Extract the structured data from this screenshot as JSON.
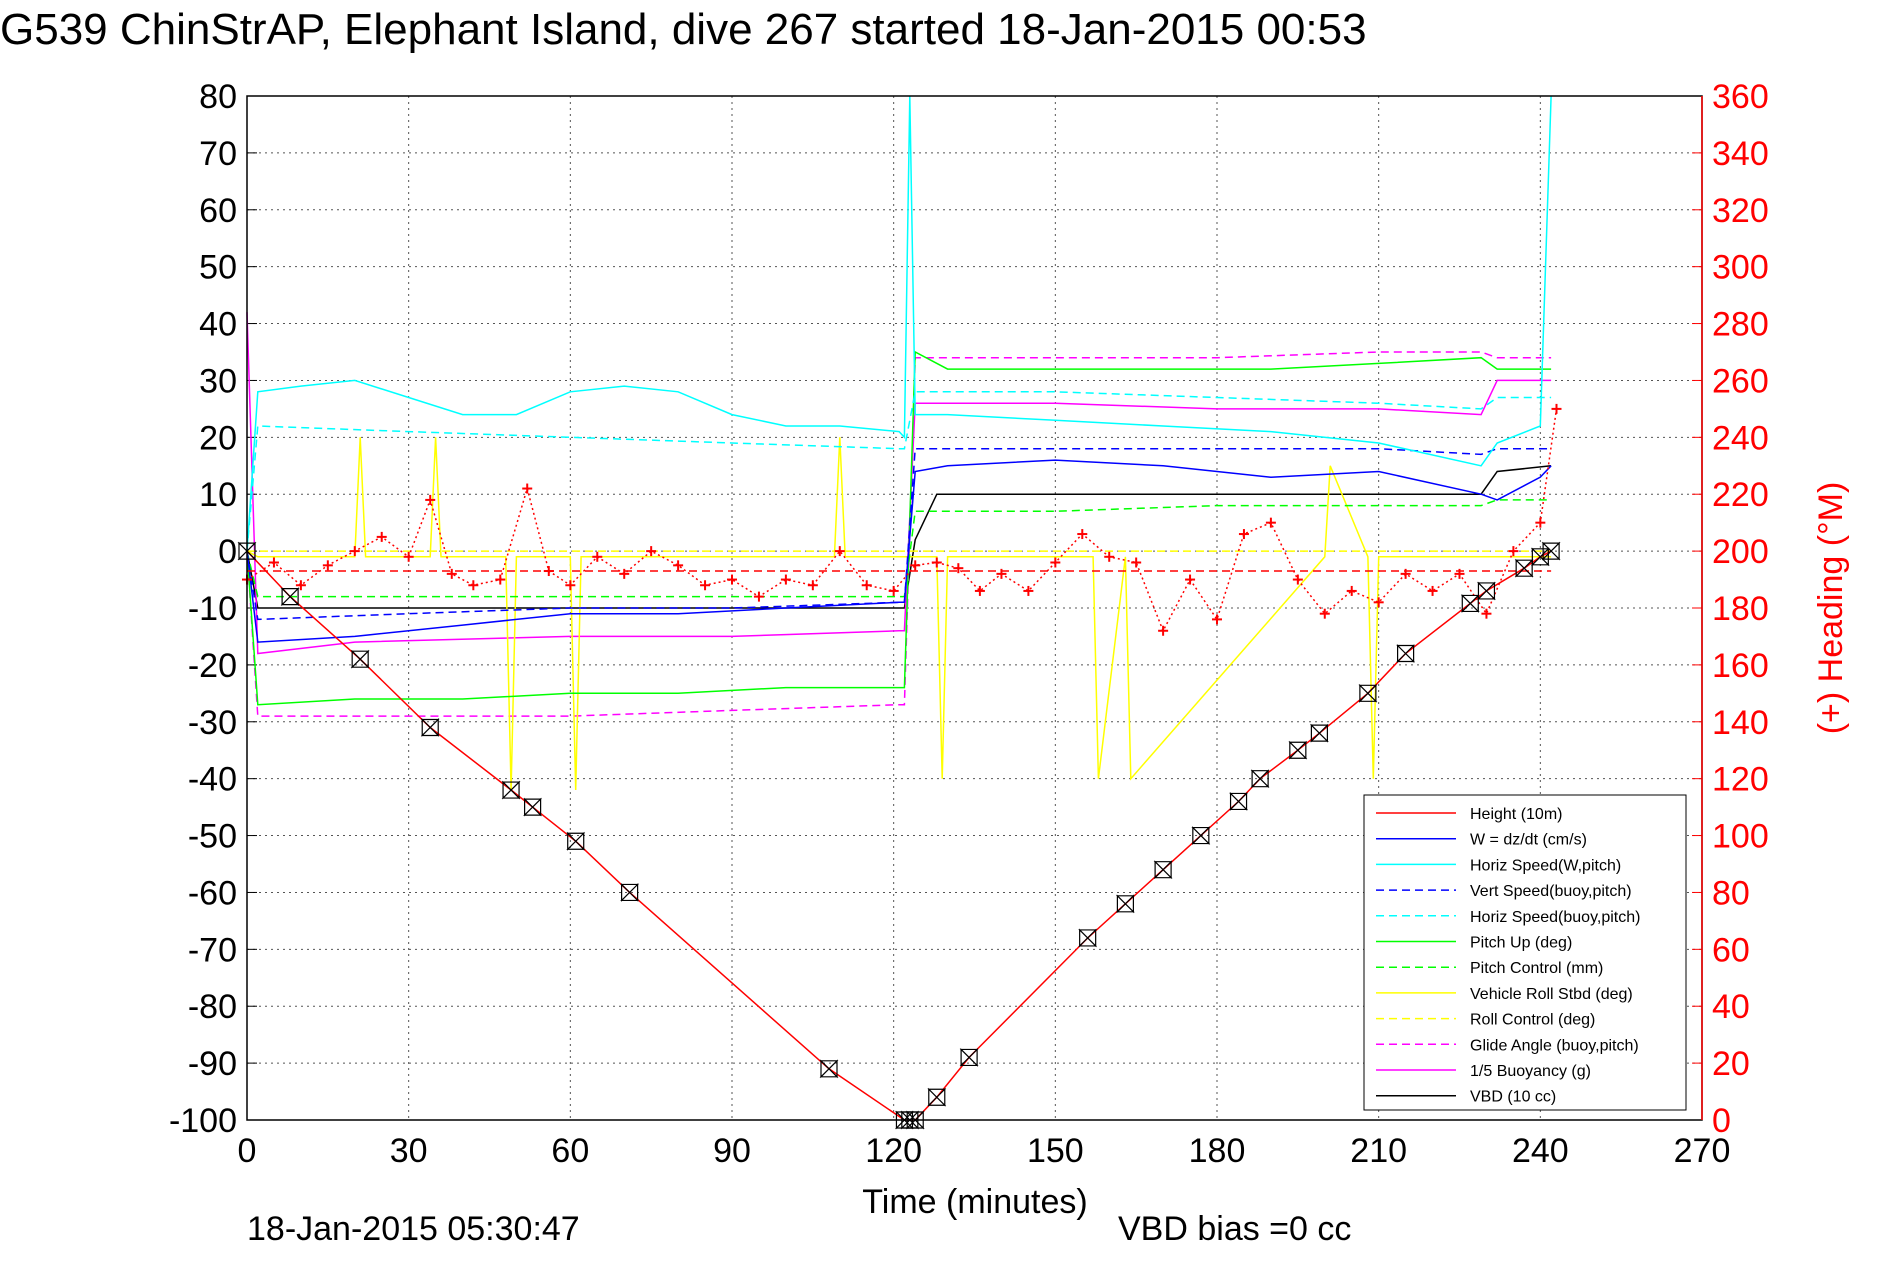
{
  "chart_data": {
    "type": "line",
    "title": "G539 ChinStrAP, Elephant Island, dive 267 started 18-Jan-2015 00:53",
    "xlabel": "Time (minutes)",
    "ylabel": "",
    "ylabel_right": "(+) Heading (°M)",
    "footer_left": "18-Jan-2015 05:30:47",
    "footer_right": "VBD bias =0 cc",
    "xlim": [
      0,
      270
    ],
    "ylim": [
      -100,
      80
    ],
    "ylim_right": [
      0,
      360
    ],
    "x_ticks": [
      "0",
      "30",
      "60",
      "90",
      "120",
      "150",
      "180",
      "210",
      "240",
      "270"
    ],
    "y_ticks": [
      "80",
      "70",
      "60",
      "50",
      "40",
      "30",
      "20",
      "10",
      "0",
      "-10",
      "-20",
      "-30",
      "-40",
      "-50",
      "-60",
      "-70",
      "-80",
      "-90",
      "-100"
    ],
    "y_ticks_right": [
      "360",
      "340",
      "320",
      "300",
      "280",
      "260",
      "240",
      "220",
      "200",
      "180",
      "160",
      "140",
      "120",
      "100",
      "80",
      "60",
      "40",
      "20",
      "0"
    ],
    "grid": true,
    "legend_position": "bottom-right",
    "colors": {
      "red": "#ff0000",
      "blue": "#0000ff",
      "cyan": "#00ffff",
      "green": "#00ff00",
      "yellow": "#ffff00",
      "magenta": "#ff00ff",
      "black": "#000000"
    },
    "series": [
      {
        "name": "Height (10m)",
        "color": "#ff0000",
        "style": "solid",
        "x": [
          0,
          8,
          21,
          34,
          49,
          53,
          61,
          71,
          108,
          122,
          124,
          128,
          134,
          156,
          163,
          170,
          177,
          184,
          188,
          195,
          199,
          208,
          215,
          230,
          237,
          240,
          242
        ],
        "y": [
          0,
          -8,
          -19,
          -31,
          -42,
          -45,
          -51,
          -60,
          -91,
          -100,
          -100,
          -96,
          -89,
          -68,
          -62,
          -56,
          -50,
          -44,
          -40,
          -35,
          -32,
          -25,
          -18,
          -7,
          -3,
          -1,
          0
        ]
      },
      {
        "name": "W = dz/dt (cm/s)",
        "color": "#0000ff",
        "style": "solid",
        "x": [
          0,
          2,
          20,
          40,
          60,
          80,
          100,
          121,
          122,
          124,
          130,
          150,
          170,
          190,
          210,
          229,
          232,
          240,
          242
        ],
        "y": [
          0,
          -16,
          -15,
          -13,
          -11,
          -11,
          -10,
          -9,
          -9,
          14,
          15,
          16,
          15,
          13,
          14,
          10,
          9,
          13,
          15
        ]
      },
      {
        "name": "Horiz Speed(W,pitch)",
        "color": "#00ffff",
        "style": "solid",
        "x": [
          0,
          2,
          10,
          20,
          30,
          40,
          50,
          60,
          70,
          80,
          90,
          100,
          110,
          121,
          122,
          123,
          124,
          130,
          150,
          170,
          190,
          210,
          229,
          232,
          240,
          242
        ],
        "y": [
          0,
          28,
          29,
          30,
          27,
          24,
          24,
          28,
          29,
          28,
          24,
          22,
          22,
          21,
          20,
          80,
          24,
          24,
          23,
          22,
          21,
          19,
          15,
          19,
          22,
          80
        ]
      },
      {
        "name": "Vert Speed(buoy,pitch)",
        "color": "#0000ff",
        "style": "dashed",
        "x": [
          0,
          2,
          30,
          60,
          90,
          121,
          122,
          124,
          150,
          180,
          210,
          229,
          232,
          242
        ],
        "y": [
          0,
          -12,
          -11,
          -10,
          -10,
          -9,
          -9,
          18,
          18,
          18,
          18,
          17,
          18,
          18
        ]
      },
      {
        "name": "Horiz Speed(buoy,pitch)",
        "color": "#00ffff",
        "style": "dashed",
        "x": [
          0,
          2,
          30,
          60,
          90,
          121,
          122,
          124,
          150,
          180,
          210,
          229,
          232,
          242
        ],
        "y": [
          0,
          22,
          21,
          20,
          19,
          18,
          18,
          28,
          28,
          27,
          26,
          25,
          27,
          27
        ]
      },
      {
        "name": "Pitch Up (deg)",
        "color": "#00ff00",
        "style": "solid",
        "x": [
          0,
          2,
          20,
          40,
          60,
          80,
          100,
          121,
          122,
          124,
          130,
          150,
          170,
          190,
          210,
          229,
          232,
          242
        ],
        "y": [
          0,
          -27,
          -26,
          -26,
          -25,
          -25,
          -24,
          -24,
          -24,
          35,
          32,
          32,
          32,
          32,
          33,
          34,
          32,
          32
        ]
      },
      {
        "name": "Pitch Control (mm)",
        "color": "#00ff00",
        "style": "dashed",
        "x": [
          0,
          2,
          60,
          121,
          122,
          124,
          150,
          180,
          210,
          229,
          232,
          242
        ],
        "y": [
          0,
          -8,
          -8,
          -8,
          -8,
          7,
          7,
          8,
          8,
          8,
          9,
          9
        ]
      },
      {
        "name": "Vehicle Roll Stbd (deg)",
        "color": "#ffff00",
        "style": "solid",
        "x": [
          0,
          2,
          20,
          21,
          22,
          34,
          35,
          36,
          48,
          49,
          50,
          60,
          61,
          62,
          109,
          110,
          111,
          128,
          129,
          130,
          157,
          158,
          163,
          164,
          200,
          201,
          208,
          209,
          210,
          242
        ],
        "y": [
          0,
          -1,
          -1,
          20,
          -1,
          -1,
          20,
          -1,
          -1,
          -42,
          -1,
          -1,
          -42,
          -1,
          -1,
          20,
          -1,
          -1,
          -40,
          -1,
          -1,
          -40,
          -1,
          -40,
          -1,
          15,
          -1,
          -40,
          -1,
          -1
        ]
      },
      {
        "name": "Roll Control (deg)",
        "color": "#ffff00",
        "style": "dashed",
        "x": [
          0,
          242
        ],
        "y": [
          0,
          0
        ]
      },
      {
        "name": "Glide Angle (buoy,pitch)",
        "color": "#ff00ff",
        "style": "dashed",
        "x": [
          0,
          2,
          30,
          60,
          90,
          121,
          122,
          124,
          150,
          180,
          210,
          229,
          232,
          242
        ],
        "y": [
          0,
          -29,
          -29,
          -29,
          -28,
          -27,
          -27,
          34,
          34,
          34,
          35,
          35,
          34,
          34
        ]
      },
      {
        "name": "1/5 Buoyancy (g)",
        "color": "#ff00ff",
        "style": "solid",
        "x": [
          0,
          2,
          20,
          60,
          90,
          121,
          122,
          124,
          150,
          180,
          210,
          229,
          232,
          242
        ],
        "y": [
          42,
          -18,
          -16,
          -15,
          -15,
          -14,
          -14,
          26,
          26,
          25,
          25,
          24,
          30,
          30
        ]
      },
      {
        "name": "VBD (10 cc)",
        "color": "#000000",
        "style": "solid",
        "x": [
          0,
          2,
          60,
          121,
          122,
          124,
          128,
          150,
          180,
          210,
          229,
          232,
          242
        ],
        "y": [
          0,
          -10,
          -10,
          -10,
          -10,
          2,
          10,
          10,
          10,
          10,
          10,
          14,
          15
        ]
      }
    ],
    "heading_marker_series": {
      "name": "(+) Heading (°M)",
      "color": "#ff0000",
      "marker": "+",
      "axis": "right",
      "x": [
        0,
        5,
        10,
        15,
        20,
        25,
        30,
        34,
        38,
        42,
        47,
        52,
        56,
        60,
        65,
        70,
        75,
        80,
        85,
        90,
        95,
        100,
        105,
        110,
        115,
        120,
        124,
        128,
        132,
        136,
        140,
        145,
        150,
        155,
        160,
        165,
        170,
        175,
        180,
        185,
        190,
        195,
        200,
        205,
        210,
        215,
        220,
        225,
        230,
        235,
        240,
        243
      ],
      "y": [
        190,
        196,
        188,
        195,
        200,
        205,
        198,
        218,
        192,
        188,
        190,
        222,
        193,
        188,
        198,
        192,
        200,
        195,
        188,
        190,
        184,
        190,
        188,
        200,
        188,
        186,
        195,
        196,
        194,
        186,
        192,
        186,
        196,
        206,
        198,
        196,
        172,
        190,
        176,
        206,
        210,
        190,
        178,
        186,
        182,
        192,
        186,
        192,
        178,
        200,
        210,
        250
      ]
    },
    "heading_ref_line": {
      "color": "#ff0000",
      "style": "dashed",
      "y": 193,
      "axis": "right"
    },
    "markers": {
      "symbol": "hourglass",
      "color": "#000000",
      "on_series": "Height (10m)",
      "x": [
        0,
        8,
        21,
        34,
        49,
        53,
        61,
        71,
        108,
        122,
        123,
        124,
        128,
        134,
        156,
        163,
        170,
        177,
        184,
        188,
        195,
        199,
        208,
        215,
        227,
        230,
        237,
        240,
        242
      ]
    }
  }
}
